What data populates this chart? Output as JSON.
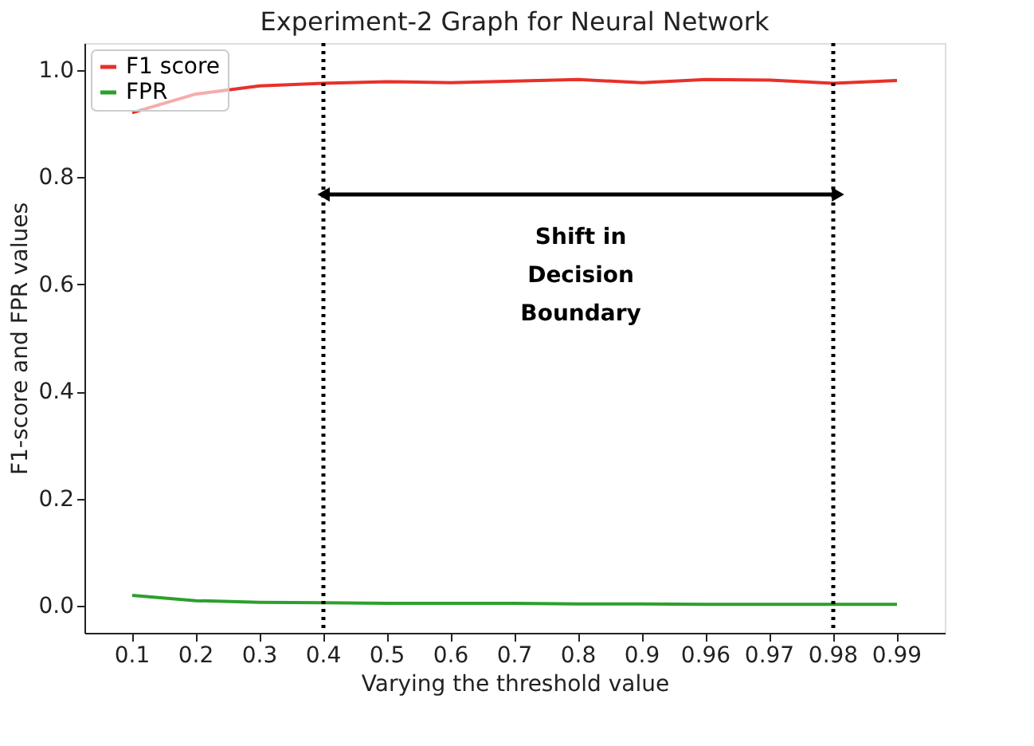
{
  "chart_data": {
    "type": "line",
    "title": "Experiment-2 Graph for Neural Network",
    "xlabel": "Varying the threshold value",
    "ylabel": "F1-score and FPR values",
    "categories": [
      "0.1",
      "0.2",
      "0.3",
      "0.4",
      "0.5",
      "0.6",
      "0.7",
      "0.8",
      "0.9",
      "0.96",
      "0.97",
      "0.98",
      "0.99"
    ],
    "series": [
      {
        "name": "F1 score",
        "color": "#e8302a",
        "values": [
          0.92,
          0.955,
          0.97,
          0.975,
          0.978,
          0.976,
          0.979,
          0.982,
          0.976,
          0.982,
          0.981,
          0.975,
          0.98
        ]
      },
      {
        "name": "FPR",
        "color": "#2ca02c",
        "values": [
          0.02,
          0.01,
          0.007,
          0.006,
          0.005,
          0.005,
          0.005,
          0.004,
          0.004,
          0.003,
          0.003,
          0.003,
          0.003
        ]
      }
    ],
    "ylim": [
      -0.05,
      1.05
    ],
    "yticks": [
      {
        "value": 0,
        "label": "0.0"
      },
      0.2,
      0.4,
      0.6,
      0.8,
      {
        "value": 1,
        "label": "1.0"
      }
    ],
    "ref_lines": [
      {
        "axis": "x",
        "value": "0.4",
        "color": "#000000",
        "line_style": "dotted"
      },
      {
        "axis": "x",
        "value": "0.98",
        "color": "#000000",
        "line_style": "dotted"
      }
    ],
    "annotations": [
      "Shift in\nDecision\nBoundary"
    ],
    "grid": false,
    "legend": "top left",
    "marker": "none",
    "line_style": "solid"
  }
}
